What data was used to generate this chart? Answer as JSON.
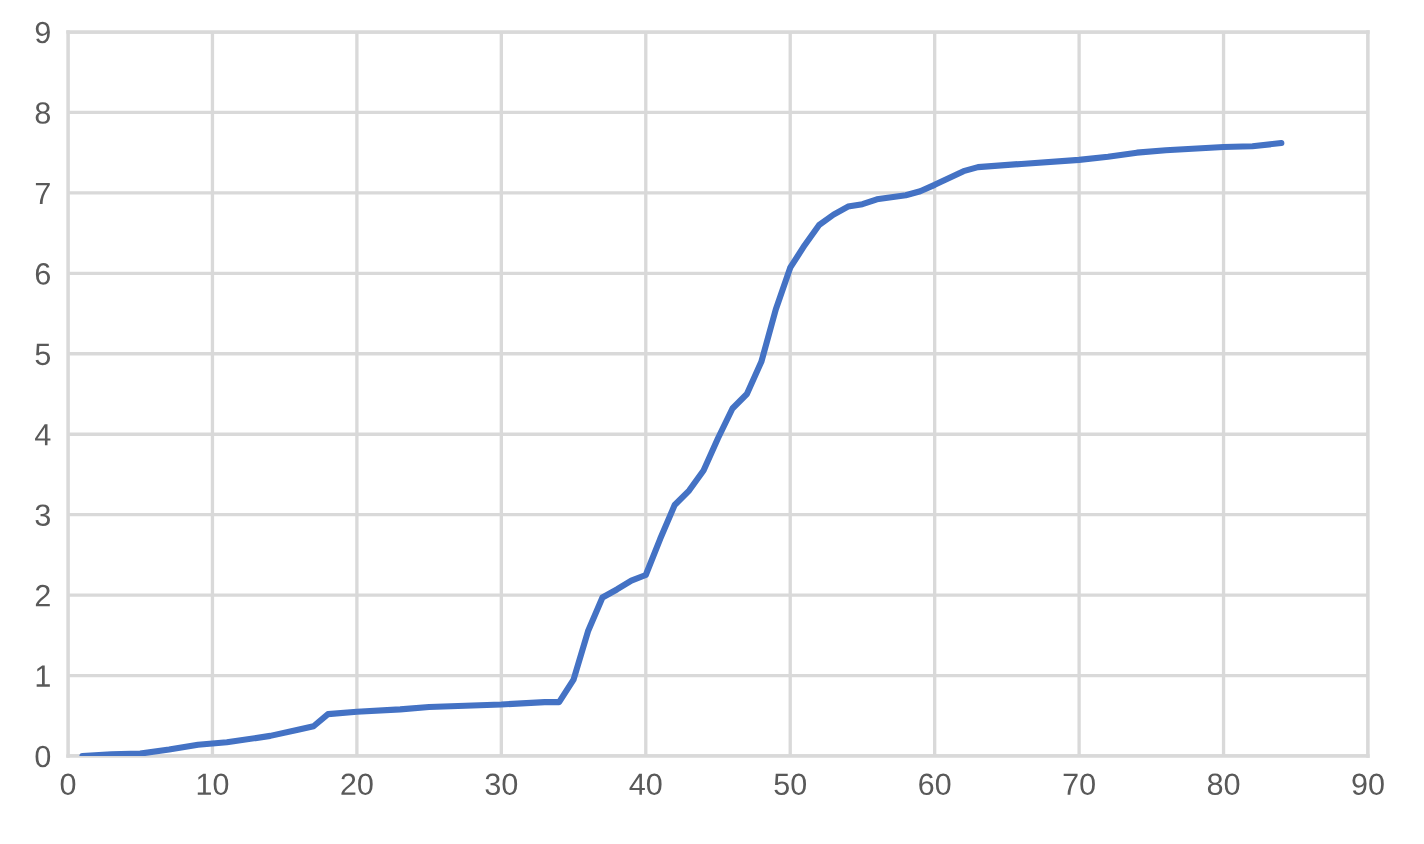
{
  "chart_data": {
    "type": "line",
    "x": [
      1,
      3,
      5,
      7,
      9,
      11,
      14,
      16,
      17,
      18,
      20,
      23,
      25,
      30,
      33,
      34,
      35,
      36,
      37,
      38,
      39,
      40,
      41,
      42,
      43,
      44,
      45,
      46,
      47,
      48,
      49,
      50,
      51,
      52,
      53,
      54,
      55,
      56,
      58,
      59,
      60,
      62,
      63,
      66,
      70,
      72,
      74,
      76,
      80,
      82,
      84
    ],
    "series": [
      {
        "color": "#4472c4",
        "values": [
          0,
          0.02,
          0.03,
          0.08,
          0.14,
          0.17,
          0.25,
          0.33,
          0.37,
          0.52,
          0.55,
          0.58,
          0.61,
          0.64,
          0.67,
          0.67,
          0.95,
          1.55,
          1.97,
          2.07,
          2.18,
          2.25,
          2.7,
          3.12,
          3.3,
          3.55,
          3.95,
          4.32,
          4.5,
          4.9,
          5.55,
          6.07,
          6.35,
          6.6,
          6.73,
          6.83,
          6.86,
          6.92,
          6.97,
          7.02,
          7.1,
          7.27,
          7.32,
          7.36,
          7.41,
          7.45,
          7.5,
          7.53,
          7.57,
          7.58,
          7.62
        ]
      }
    ],
    "xlim": [
      0,
      90
    ],
    "xticks": [
      0,
      10,
      20,
      30,
      40,
      50,
      60,
      70,
      80,
      90
    ],
    "ylim": [
      0,
      9
    ],
    "yticks": [
      0,
      1,
      2,
      3,
      4,
      5,
      6,
      7,
      8,
      9
    ],
    "grid": true,
    "marker": "none",
    "line_style": "solid"
  }
}
